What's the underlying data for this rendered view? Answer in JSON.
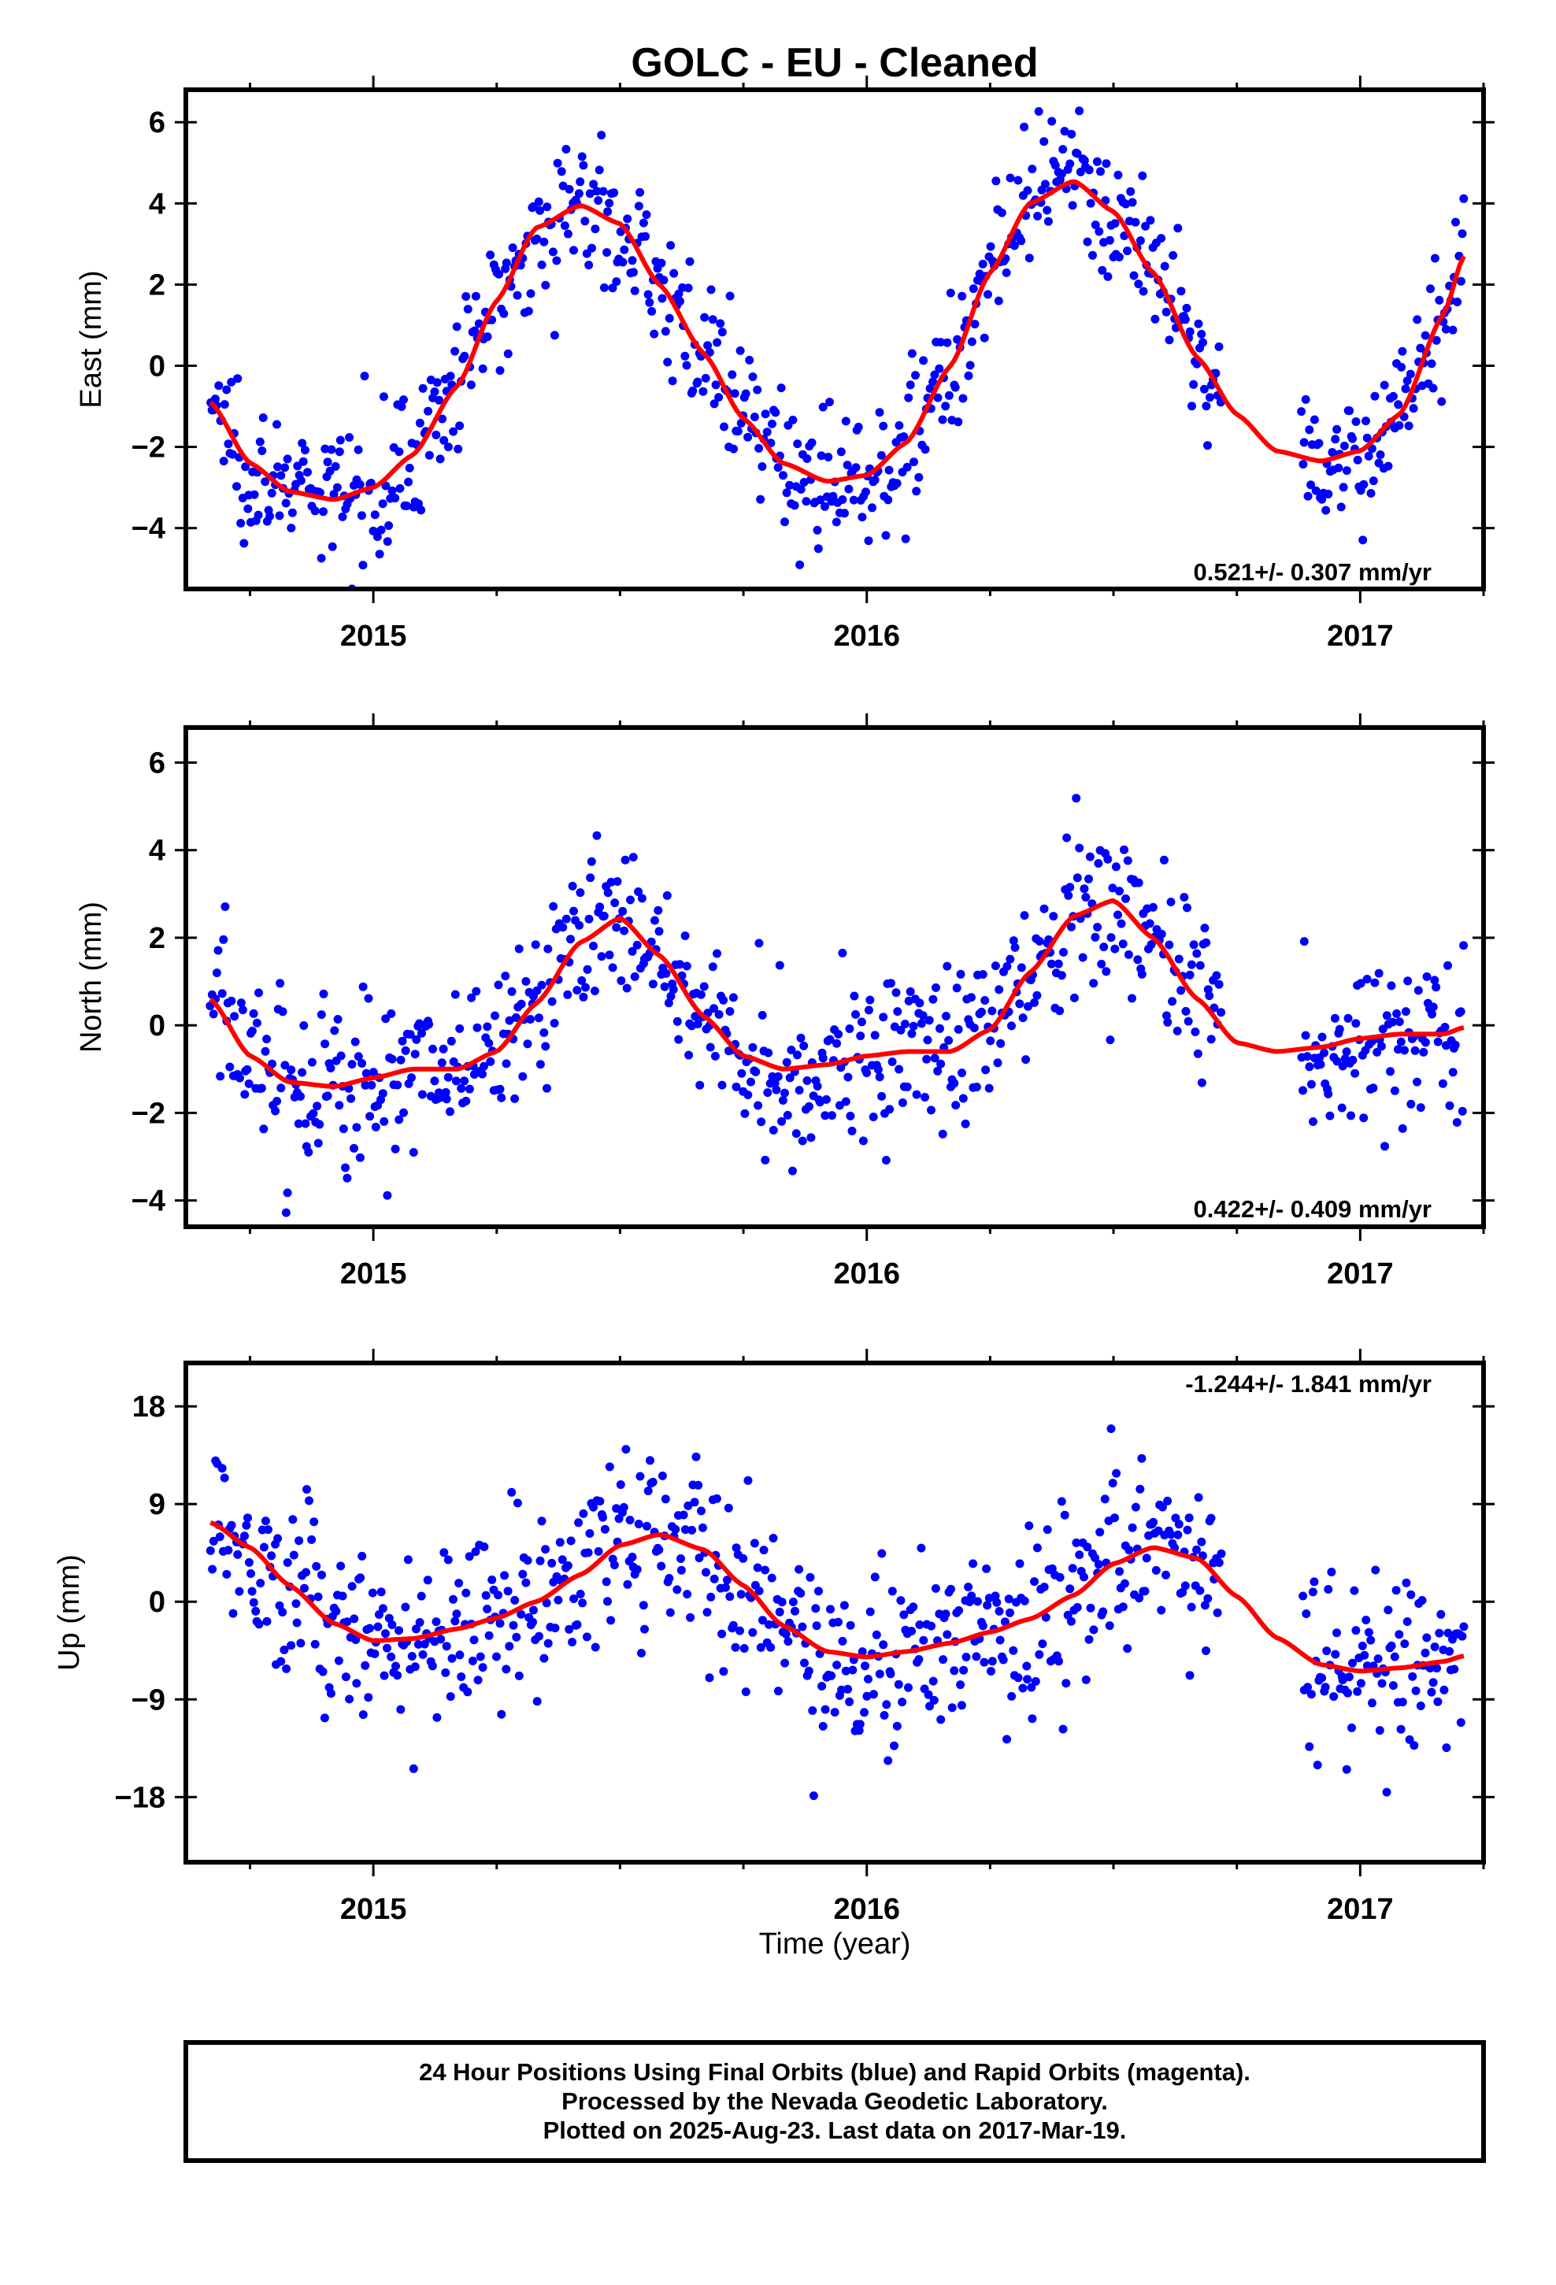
{
  "figure": {
    "title": "GOLC  - EU - Cleaned",
    "xlabel": "Time (year)",
    "footer": [
      "24 Hour Positions Using Final Orbits (blue) and Rapid Orbits (magenta).",
      "Processed by the Nevada Geodetic Laboratory.",
      "Plotted on 2025-Aug-23. Last data on 2017-Mar-19."
    ]
  },
  "colors": {
    "points": "#0000ff",
    "fit": "#ff0000",
    "frame": "#000000"
  },
  "chart_data": [
    {
      "type": "scatter",
      "ylabel": "East (mm)",
      "xlim": [
        2014.62,
        2017.25
      ],
      "ylim": [
        -5.5,
        6.8
      ],
      "x_ticks": [
        2015,
        2016,
        2017
      ],
      "x_tick_labels": [
        "2015",
        "2016",
        "2017"
      ],
      "y_ticks": [
        -4,
        -2,
        0,
        2,
        4,
        6
      ],
      "y_tick_labels": [
        "−4",
        "−2",
        "0",
        "2",
        "4",
        "6"
      ],
      "rate_label": "0.521+/- 0.307 mm/yr",
      "rate_position": "bottom-right",
      "grid": false,
      "series": [
        {
          "kind": "fit",
          "x": [
            2014.67,
            2014.75,
            2014.83,
            2014.92,
            2015.0,
            2015.08,
            2015.17,
            2015.25,
            2015.33,
            2015.42,
            2015.5,
            2015.58,
            2015.67,
            2015.75,
            2015.83,
            2015.92,
            2016.0,
            2016.08,
            2016.17,
            2016.25,
            2016.33,
            2016.42,
            2016.5,
            2016.58,
            2016.67,
            2016.75,
            2016.83,
            2016.92,
            2017.0,
            2017.08,
            2017.17,
            2017.21
          ],
          "y": [
            -0.9,
            -2.4,
            -3.1,
            -3.3,
            -3.0,
            -2.2,
            -0.5,
            1.6,
            3.4,
            3.95,
            3.5,
            2.0,
            0.3,
            -1.3,
            -2.4,
            -2.85,
            -2.7,
            -1.9,
            0.0,
            2.3,
            4.0,
            4.55,
            3.8,
            2.3,
            0.2,
            -1.2,
            -2.1,
            -2.35,
            -2.1,
            -1.2,
            1.3,
            2.7
          ]
        },
        {
          "kind": "points",
          "amplitude": 0.85,
          "x_range": [
            2014.67,
            2017.21
          ],
          "gaps": [
            [
              2016.72,
              2016.88
            ]
          ],
          "count": 780
        }
      ]
    },
    {
      "type": "scatter",
      "ylabel": "North (mm)",
      "xlim": [
        2014.62,
        2017.25
      ],
      "ylim": [
        -4.6,
        6.8
      ],
      "x_ticks": [
        2015,
        2016,
        2017
      ],
      "x_tick_labels": [
        "2015",
        "2016",
        "2017"
      ],
      "y_ticks": [
        -4,
        -2,
        0,
        2,
        4,
        6
      ],
      "y_tick_labels": [
        "−4",
        "−2",
        "0",
        "2",
        "4",
        "6"
      ],
      "rate_label": "0.422+/- 0.409 mm/yr",
      "rate_position": "bottom-right",
      "grid": false,
      "series": [
        {
          "kind": "fit",
          "x": [
            2014.67,
            2014.75,
            2014.83,
            2014.92,
            2015.0,
            2015.08,
            2015.17,
            2015.25,
            2015.33,
            2015.42,
            2015.5,
            2015.58,
            2015.67,
            2015.75,
            2015.83,
            2015.92,
            2016.0,
            2016.08,
            2016.17,
            2016.25,
            2016.33,
            2016.42,
            2016.5,
            2016.58,
            2016.67,
            2016.75,
            2016.83,
            2016.92,
            2017.0,
            2017.08,
            2017.17,
            2017.21
          ],
          "y": [
            0.6,
            -0.7,
            -1.3,
            -1.4,
            -1.2,
            -1.0,
            -1.0,
            -0.6,
            0.5,
            1.9,
            2.45,
            1.6,
            0.2,
            -0.7,
            -1.0,
            -0.9,
            -0.7,
            -0.6,
            -0.6,
            -0.1,
            1.2,
            2.5,
            2.85,
            2.0,
            0.6,
            -0.4,
            -0.6,
            -0.5,
            -0.3,
            -0.2,
            -0.2,
            -0.05
          ]
        },
        {
          "kind": "points",
          "amplitude": 1.0,
          "x_range": [
            2014.67,
            2017.21
          ],
          "gaps": [
            [
              2016.72,
              2016.88
            ]
          ],
          "count": 780
        }
      ]
    },
    {
      "type": "scatter",
      "ylabel": "Up (mm)",
      "xlim": [
        2014.62,
        2017.25
      ],
      "ylim": [
        -24,
        22
      ],
      "x_ticks": [
        2015,
        2016,
        2017
      ],
      "x_tick_labels": [
        "2015",
        "2016",
        "2017"
      ],
      "y_ticks": [
        -18,
        -9,
        0,
        9,
        18
      ],
      "y_tick_labels": [
        "−18",
        "−9",
        "0",
        "9",
        "18"
      ],
      "rate_label": "-1.244+/- 1.841 mm/yr",
      "rate_position": "top-right",
      "grid": false,
      "series": [
        {
          "kind": "fit",
          "x": [
            2014.67,
            2014.75,
            2014.83,
            2014.92,
            2015.0,
            2015.08,
            2015.17,
            2015.25,
            2015.33,
            2015.42,
            2015.5,
            2015.58,
            2015.67,
            2015.75,
            2015.83,
            2015.92,
            2016.0,
            2016.08,
            2016.17,
            2016.25,
            2016.33,
            2016.42,
            2016.5,
            2016.58,
            2016.67,
            2016.75,
            2016.83,
            2016.92,
            2017.0,
            2017.08,
            2017.17,
            2017.21
          ],
          "y": [
            7.3,
            5.0,
            1.5,
            -2.0,
            -3.6,
            -3.4,
            -2.5,
            -1.5,
            0.0,
            2.5,
            5.2,
            6.2,
            4.8,
            1.5,
            -2.2,
            -4.6,
            -5.1,
            -4.6,
            -3.8,
            -2.8,
            -1.6,
            0.6,
            3.5,
            5.0,
            4.0,
            0.5,
            -3.3,
            -5.8,
            -6.4,
            -6.1,
            -5.5,
            -5.0
          ]
        },
        {
          "kind": "points",
          "amplitude": 4.2,
          "x_range": [
            2014.67,
            2017.21
          ],
          "gaps": [
            [
              2016.72,
              2016.88
            ]
          ],
          "count": 780
        }
      ]
    }
  ]
}
